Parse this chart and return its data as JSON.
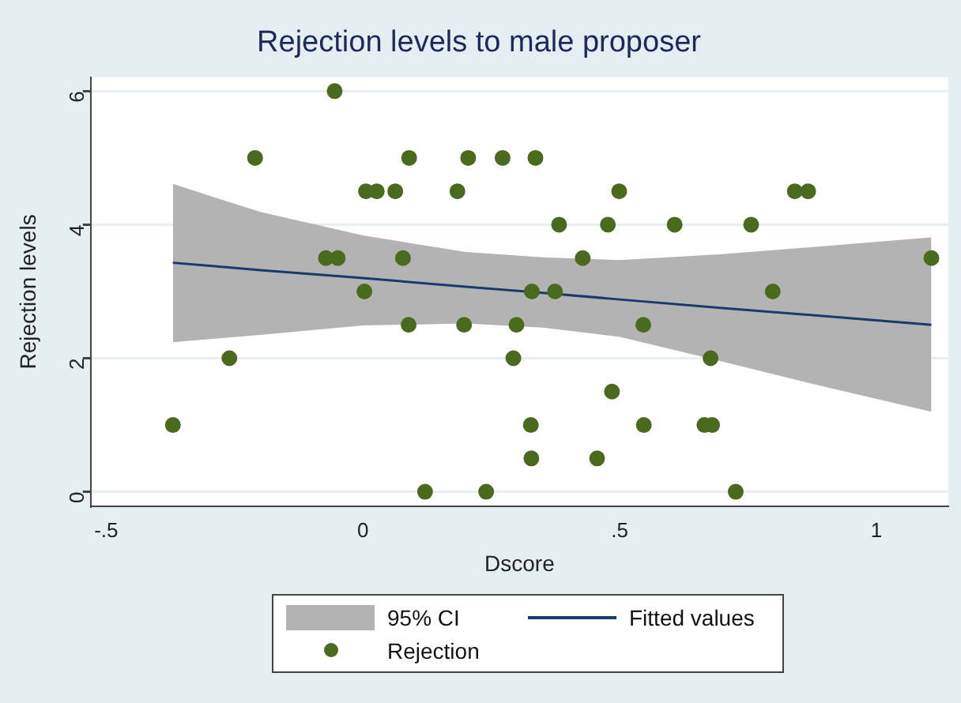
{
  "chart_data": {
    "type": "scatter",
    "title": "Rejection levels to male proposer",
    "xlabel": "Dscore",
    "ylabel": "Rejection levels",
    "xlim": [
      -0.53,
      1.14
    ],
    "ylim": [
      -0.22,
      6.21
    ],
    "xticks": [
      {
        "value": -0.5,
        "label": "-.5"
      },
      0,
      {
        "value": 0.5,
        "label": ".5"
      },
      1
    ],
    "yticks": [
      0,
      2,
      4,
      6
    ],
    "grid": "y",
    "legend": "bottom",
    "marker": "circle",
    "annotations": [
      "95% CI"
    ],
    "series": [
      {
        "name": "Fitted values",
        "type": "line",
        "marker": "none",
        "color": "#1a3a6e",
        "x": [
          -0.37,
          -0.2,
          0,
          0.2,
          0.35,
          0.5,
          0.7,
          0.9,
          1.107
        ],
        "values": [
          3.43,
          3.32,
          3.2,
          3.07,
          2.98,
          2.88,
          2.75,
          2.63,
          2.5
        ],
        "lower": [
          2.24,
          2.35,
          2.49,
          2.52,
          2.46,
          2.32,
          1.95,
          1.57,
          1.2
        ],
        "upper": [
          4.61,
          4.19,
          3.84,
          3.59,
          3.51,
          3.47,
          3.56,
          3.68,
          3.81
        ]
      },
      {
        "name": "Rejection",
        "type": "scatter",
        "color": "#4a6b1e",
        "x": [
          -0.37,
          -0.26,
          -0.21,
          -0.055,
          -0.072,
          -0.049,
          0.003,
          0.006,
          0.027,
          0.063,
          0.078,
          0.09,
          0.089,
          0.121,
          0.184,
          0.205,
          0.197,
          0.24,
          0.272,
          0.299,
          0.293,
          0.336,
          0.329,
          0.374,
          0.327,
          0.328,
          0.382,
          0.428,
          0.477,
          0.499,
          0.485,
          0.456,
          0.546,
          0.547,
          0.607,
          0.677,
          0.665,
          0.68,
          0.726,
          0.756,
          0.798,
          0.841,
          0.867,
          1.107
        ],
        "values": [
          1,
          2,
          5,
          6,
          3.5,
          3.5,
          3,
          4.5,
          4.5,
          4.5,
          3.5,
          5,
          2.5,
          0,
          4.5,
          5,
          2.5,
          0,
          5,
          2.5,
          2,
          5,
          3,
          3,
          1,
          0.5,
          4,
          3.5,
          4,
          4.5,
          1.5,
          0.5,
          2.5,
          1,
          4,
          2,
          1,
          1,
          0,
          4,
          3,
          4.5,
          4.5,
          3.5
        ]
      }
    ]
  }
}
